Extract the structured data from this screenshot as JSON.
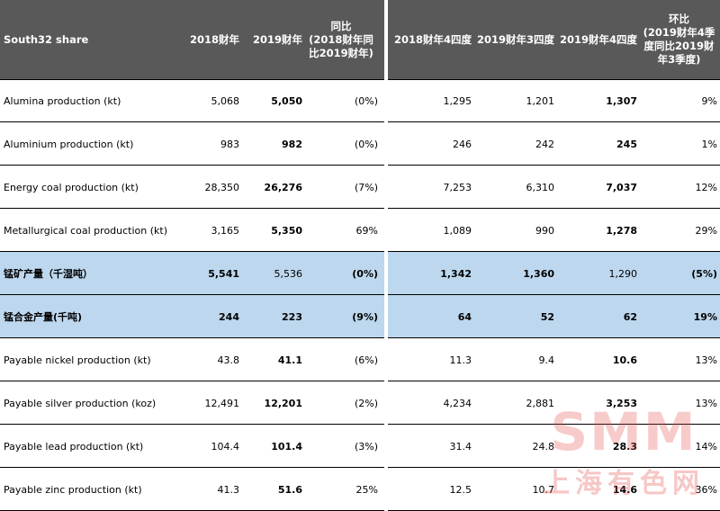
{
  "header": {
    "col0": "South32 share",
    "col1": "2018财年",
    "col2": "2019财年",
    "col3": "同比\n(2018财年同比2019财年)",
    "col4": "2018财年4四度",
    "col5": "2019财年3四度",
    "col6": "2019财年4四度",
    "col7": "环比\n(2019财年4季度同比2019财年3季度)"
  },
  "rows": [
    {
      "label": "Alumina production (kt)",
      "v": [
        "5,068",
        "5,050",
        "(0%)",
        "1,295",
        "1,201",
        "1,307",
        "9%"
      ]
    },
    {
      "label": "Aluminium  production (kt)",
      "v": [
        "983",
        "982",
        "(0%)",
        "246",
        "242",
        "245",
        "1%"
      ]
    },
    {
      "label": "Energy coal production (kt)",
      "v": [
        "28,350",
        "26,276",
        "(7%)",
        "7,253",
        "6,310",
        "7,037",
        "12%"
      ]
    },
    {
      "label": "Metallurgical coal production (kt)",
      "v": [
        "3,165",
        "5,350",
        "69%",
        "1,089",
        "990",
        "1,278",
        "29%"
      ]
    },
    {
      "label": "锰矿产量（千湿吨）",
      "v": [
        "5,541",
        "5,536",
        "(0%)",
        "1,342",
        "1,360",
        "1,290",
        "(5%)"
      ]
    },
    {
      "label": "锰合金产量(千吨)",
      "v": [
        "244",
        "223",
        "(9%)",
        "64",
        "52",
        "62",
        "19%"
      ]
    },
    {
      "label": "Payable nickel production (kt)",
      "v": [
        "43.8",
        "41.1",
        "(6%)",
        "11.3",
        "9.4",
        "10.6",
        "13%"
      ]
    },
    {
      "label": "Payable silver production (koz)",
      "v": [
        "12,491",
        "12,201",
        "(2%)",
        "4,234",
        "2,881",
        "3,253",
        "13%"
      ]
    },
    {
      "label": "Payable lead production (kt)",
      "v": [
        "104.4",
        "101.4",
        "(3%)",
        "31.4",
        "24.8",
        "28.3",
        "14%"
      ]
    },
    {
      "label": "Payable zinc production (kt)",
      "v": [
        "41.3",
        "51.6",
        "25%",
        "12.5",
        "10.7",
        "14.6",
        "36%"
      ]
    }
  ],
  "watermark": {
    "big": "SMM",
    "small": "上海有色网"
  },
  "colors": {
    "header_bg": "#595959",
    "highlight_bg": "#bdd7ee",
    "watermark": "#e64646"
  }
}
